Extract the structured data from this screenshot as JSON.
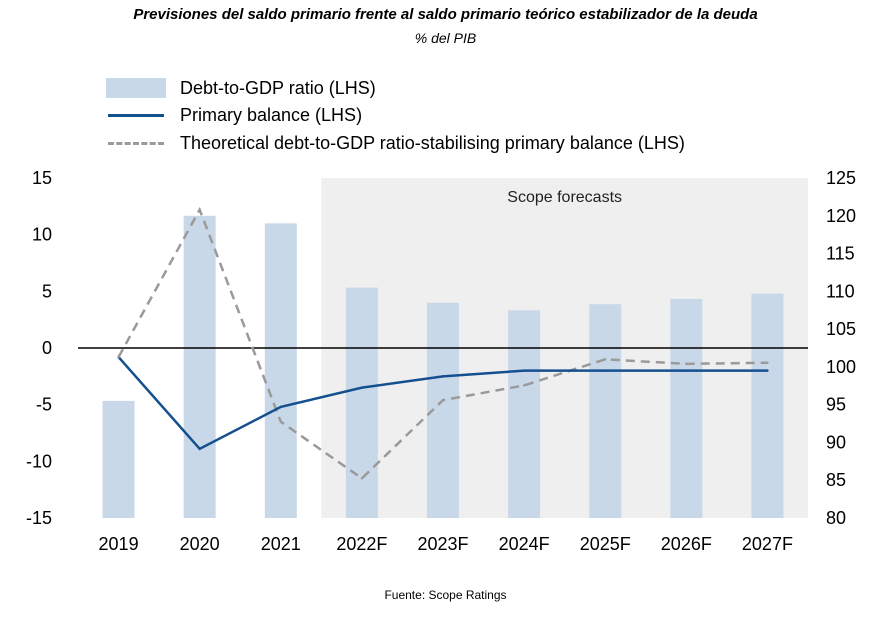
{
  "header": {
    "title": "Previsiones del saldo primario frente al saldo primario teórico estabilizador de la deuda",
    "subtitle": "% del PIB"
  },
  "footer": {
    "source": "Fuente: Scope Ratings"
  },
  "colors": {
    "bars": "#c9d8e8",
    "primary": "#14508f",
    "theoretical": "#9a9a9a",
    "forecast_shade": "#efefef"
  },
  "chart_data": {
    "type": "bar+line",
    "categories": [
      "2019",
      "2020",
      "2021",
      "2022F",
      "2023F",
      "2024F",
      "2025F",
      "2026F",
      "2027F"
    ],
    "series": [
      {
        "name": "Debt-to-GDP ratio (LHS)",
        "type": "bar",
        "axis": "right",
        "values": [
          95.5,
          120.0,
          119.0,
          110.5,
          108.5,
          107.5,
          108.3,
          109.0,
          109.7
        ]
      },
      {
        "name": "Primary balance (LHS)",
        "type": "line",
        "axis": "left",
        "values": [
          -0.8,
          -8.9,
          -5.2,
          -3.5,
          -2.5,
          -2.0,
          -2.0,
          -2.0,
          -2.0
        ]
      },
      {
        "name": "Theoretical debt-to-GDP ratio-stabilising primary balance (LHS)",
        "type": "line-dashed",
        "axis": "left",
        "values": [
          -0.8,
          12.2,
          -6.5,
          -11.5,
          -4.6,
          -3.3,
          -1.0,
          -1.4,
          -1.3
        ]
      }
    ],
    "left_axis": {
      "min": -15,
      "max": 15,
      "ticks": [
        "15",
        "10",
        "5",
        "0",
        "-5",
        "-10",
        "-15"
      ]
    },
    "right_axis": {
      "min": 80,
      "max": 125,
      "ticks": [
        "125",
        "120",
        "115",
        "110",
        "105",
        "100",
        "95",
        "90",
        "85",
        "80"
      ]
    },
    "forecast_region": {
      "start_category": "2022F",
      "label": "Scope forecasts"
    },
    "legend_position": "top-left"
  }
}
